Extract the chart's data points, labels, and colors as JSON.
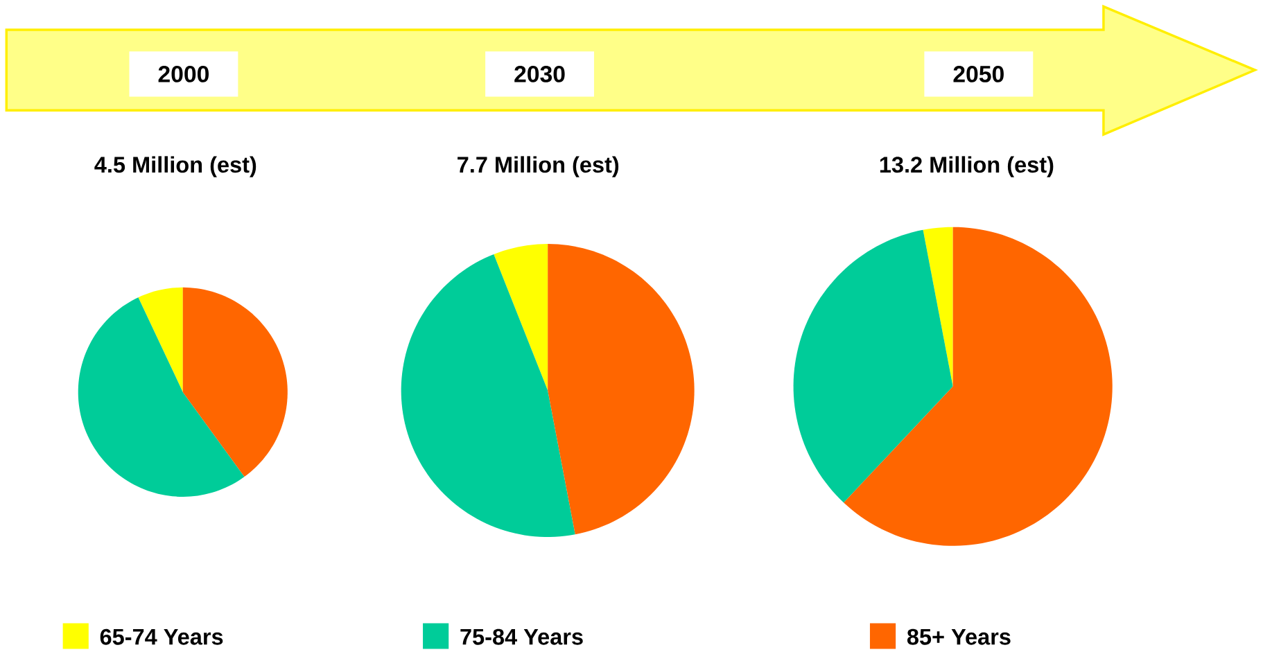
{
  "chart_data": [
    {
      "type": "pie",
      "title": "2000",
      "subtitle": "4.5 Million (est)",
      "categories": [
        "65-74 Years",
        "75-84 Years",
        "85+ Years"
      ],
      "values": [
        7,
        53,
        40
      ],
      "colors": [
        "#ffff00",
        "#00cc99",
        "#ff6600"
      ],
      "legend": "bottom"
    },
    {
      "type": "pie",
      "title": "2030",
      "subtitle": "7.7 Million (est)",
      "categories": [
        null,
        null,
        null
      ],
      "values": [
        6,
        47,
        47
      ],
      "colors": [
        "#ffff00",
        "#00cc99",
        "#ff6600"
      ]
    },
    {
      "type": "pie",
      "title": "2050",
      "subtitle": "13.2 Million (est)",
      "categories": [
        null,
        null,
        null
      ],
      "values": [
        3,
        35,
        62
      ],
      "colors": [
        "#ffff00",
        "#00cc99",
        "#ff6600"
      ]
    }
  ]
}
